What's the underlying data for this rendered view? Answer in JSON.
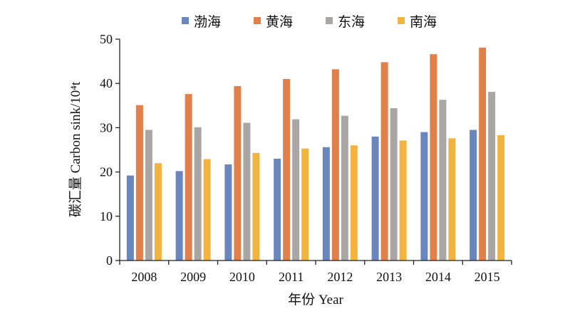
{
  "chart_data": {
    "type": "bar",
    "categories": [
      "2008",
      "2009",
      "2010",
      "2011",
      "2012",
      "2013",
      "2014",
      "2015"
    ],
    "series": [
      {
        "name": "渤海",
        "color": "#6a86bf",
        "values": [
          19.2,
          20.2,
          21.7,
          23.0,
          25.6,
          28.0,
          29.0,
          29.5
        ]
      },
      {
        "name": "黄海",
        "color": "#e1804a",
        "values": [
          35.1,
          37.6,
          39.4,
          41.0,
          43.2,
          44.8,
          46.6,
          48.1
        ]
      },
      {
        "name": "东海",
        "color": "#a9a6a4",
        "values": [
          29.5,
          30.1,
          31.1,
          31.9,
          32.7,
          34.4,
          36.3,
          38.1
        ]
      },
      {
        "name": "南海",
        "color": "#f3b33f",
        "values": [
          22.0,
          22.9,
          24.3,
          25.3,
          26.0,
          27.1,
          27.6,
          28.3
        ]
      }
    ],
    "yticks": [
      "0",
      "10",
      "20",
      "30",
      "40",
      "50"
    ],
    "ylim": [
      0,
      50
    ],
    "xlabel": "年份 Year",
    "ylabel": "碳汇量 Carbon sink/10⁴t",
    "legend_position": "top",
    "grid": false
  }
}
